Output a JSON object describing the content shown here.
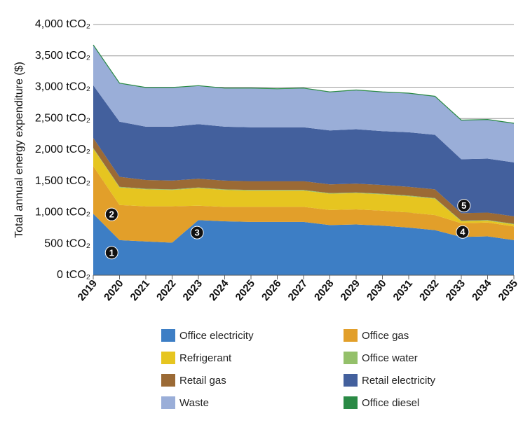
{
  "chart_data": {
    "type": "area",
    "stacked": true,
    "ylabel": "Total annual energy expenditure ($)",
    "xlabel": "",
    "ylim": [
      0,
      4000
    ],
    "y_ticks": [
      "0 tCO₂",
      "500 tCO₂",
      "1,000 tCO₂",
      "1,500 tCO₂",
      "2,000 tCO₂",
      "2,500 tCO₂",
      "3,000 tCO₂",
      "3,500 tCO₂",
      "4,000 tCO₂"
    ],
    "y_tick_values": [
      0,
      500,
      1000,
      1500,
      2000,
      2500,
      3000,
      3500,
      4000
    ],
    "grid": true,
    "x": [
      "2019",
      "2020",
      "2021",
      "2022",
      "2023",
      "2024",
      "2025",
      "2026",
      "2027",
      "2028",
      "2029",
      "2030",
      "2031",
      "2032",
      "2033",
      "2034",
      "2035"
    ],
    "series": [
      {
        "name": "Office electricity",
        "color": "#3d7ec5",
        "values": [
          980,
          560,
          540,
          520,
          880,
          860,
          850,
          850,
          850,
          800,
          810,
          790,
          760,
          720,
          610,
          620,
          560
        ]
      },
      {
        "name": "Office gas",
        "color": "#e29f2a",
        "values": [
          760,
          560,
          560,
          580,
          230,
          230,
          240,
          240,
          240,
          240,
          240,
          240,
          240,
          240,
          220,
          220,
          220
        ]
      },
      {
        "name": "Refrigerant",
        "color": "#e6c520",
        "values": [
          280,
          280,
          270,
          260,
          280,
          270,
          260,
          260,
          260,
          260,
          260,
          260,
          260,
          260,
          30,
          30,
          30
        ]
      },
      {
        "name": "Office water",
        "color": "#94c06a",
        "values": [
          10,
          10,
          10,
          10,
          10,
          10,
          10,
          10,
          10,
          10,
          10,
          10,
          10,
          10,
          10,
          10,
          10
        ]
      },
      {
        "name": "Retail gas",
        "color": "#9b6a35",
        "values": [
          160,
          160,
          140,
          140,
          140,
          140,
          140,
          140,
          140,
          140,
          140,
          140,
          140,
          140,
          120,
          120,
          120
        ]
      },
      {
        "name": "Retail electricity",
        "color": "#43609d",
        "values": [
          840,
          880,
          850,
          860,
          870,
          860,
          860,
          860,
          860,
          860,
          870,
          860,
          870,
          870,
          860,
          860,
          860
        ]
      },
      {
        "name": "Waste",
        "color": "#9aaed8",
        "values": [
          640,
          610,
          620,
          620,
          610,
          610,
          620,
          610,
          620,
          610,
          620,
          620,
          620,
          610,
          620,
          620,
          620
        ]
      },
      {
        "name": "Office diesel",
        "color": "#2a8a45",
        "values": [
          5,
          5,
          5,
          5,
          5,
          5,
          5,
          5,
          5,
          5,
          5,
          5,
          5,
          5,
          5,
          5,
          5
        ]
      }
    ],
    "markers": [
      {
        "label": "1",
        "x": "2019.7",
        "y": 360
      },
      {
        "label": "2",
        "x": "2019.7",
        "y": 970
      },
      {
        "label": "3",
        "x": "2022.95",
        "y": 680
      },
      {
        "label": "4",
        "x": "2033.05",
        "y": 690
      },
      {
        "label": "5",
        "x": "2033.1",
        "y": 1110
      }
    ],
    "legend_position": "bottom"
  }
}
